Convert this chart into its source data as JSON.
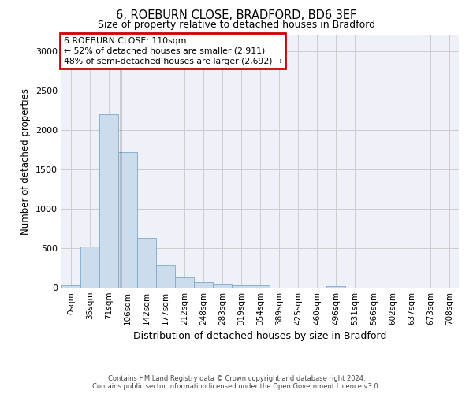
{
  "title": "6, ROEBURN CLOSE, BRADFORD, BD6 3EF",
  "subtitle": "Size of property relative to detached houses in Bradford",
  "xlabel": "Distribution of detached houses by size in Bradford",
  "ylabel": "Number of detached properties",
  "bar_labels": [
    "0sqm",
    "35sqm",
    "71sqm",
    "106sqm",
    "142sqm",
    "177sqm",
    "212sqm",
    "248sqm",
    "283sqm",
    "319sqm",
    "354sqm",
    "389sqm",
    "425sqm",
    "460sqm",
    "496sqm",
    "531sqm",
    "566sqm",
    "602sqm",
    "637sqm",
    "673sqm",
    "708sqm"
  ],
  "bar_values": [
    30,
    520,
    2200,
    1720,
    630,
    290,
    130,
    75,
    45,
    35,
    30,
    5,
    5,
    5,
    25,
    5,
    5,
    5,
    5,
    5,
    5
  ],
  "bar_color": "#ccdcec",
  "bar_edge_color": "#7aaace",
  "vline_color": "#333333",
  "annotation_lines": [
    "6 ROEBURN CLOSE: 110sqm",
    "← 52% of detached houses are smaller (2,911)",
    "48% of semi-detached houses are larger (2,692) →"
  ],
  "annotation_box_color": "#cc0000",
  "annotation_text_color": "#000000",
  "ylim": [
    0,
    3200
  ],
  "yticks": [
    0,
    500,
    1000,
    1500,
    2000,
    2500,
    3000
  ],
  "grid_color": "#cccccc",
  "background_color": "#eef2f8",
  "footer_line1": "Contains HM Land Registry data © Crown copyright and database right 2024.",
  "footer_line2": "Contains public sector information licensed under the Open Government Licence v3.0."
}
